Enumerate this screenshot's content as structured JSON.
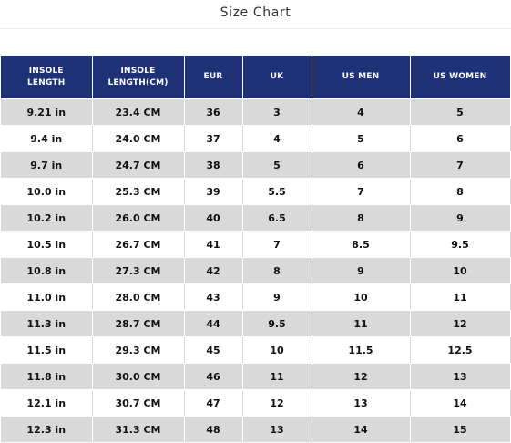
{
  "page_title": "Size Chart",
  "colors": {
    "header_bg": "#1e3176",
    "header_text": "#ffffff",
    "band_row": "#d9d9d9",
    "plain_row": "#ffffff"
  },
  "table": {
    "headers": [
      "INSOLE\nLENGTH",
      "INSOLE\nLENGTH(CM)",
      "EUR",
      "UK",
      "US MEN",
      "US WOMEN"
    ],
    "rows": [
      [
        "9.21 in",
        "23.4 CM",
        "36",
        "3",
        "4",
        "5"
      ],
      [
        "9.4 in",
        "24.0 CM",
        "37",
        "4",
        "5",
        "6"
      ],
      [
        "9.7 in",
        "24.7 CM",
        "38",
        "5",
        "6",
        "7"
      ],
      [
        "10.0 in",
        "25.3 CM",
        "39",
        "5.5",
        "7",
        "8"
      ],
      [
        "10.2 in",
        "26.0 CM",
        "40",
        "6.5",
        "8",
        "9"
      ],
      [
        "10.5 in",
        "26.7 CM",
        "41",
        "7",
        "8.5",
        "9.5"
      ],
      [
        "10.8 in",
        "27.3 CM",
        "42",
        "8",
        "9",
        "10"
      ],
      [
        "11.0 in",
        "28.0 CM",
        "43",
        "9",
        "10",
        "11"
      ],
      [
        "11.3 in",
        "28.7 CM",
        "44",
        "9.5",
        "11",
        "12"
      ],
      [
        "11.5 in",
        "29.3 CM",
        "45",
        "10",
        "11.5",
        "12.5"
      ],
      [
        "11.8 in",
        "30.0 CM",
        "46",
        "11",
        "12",
        "13"
      ],
      [
        "12.1 in",
        "30.7 CM",
        "47",
        "12",
        "13",
        "14"
      ],
      [
        "12.3 in",
        "31.3 CM",
        "48",
        "13",
        "14",
        "15"
      ]
    ]
  }
}
